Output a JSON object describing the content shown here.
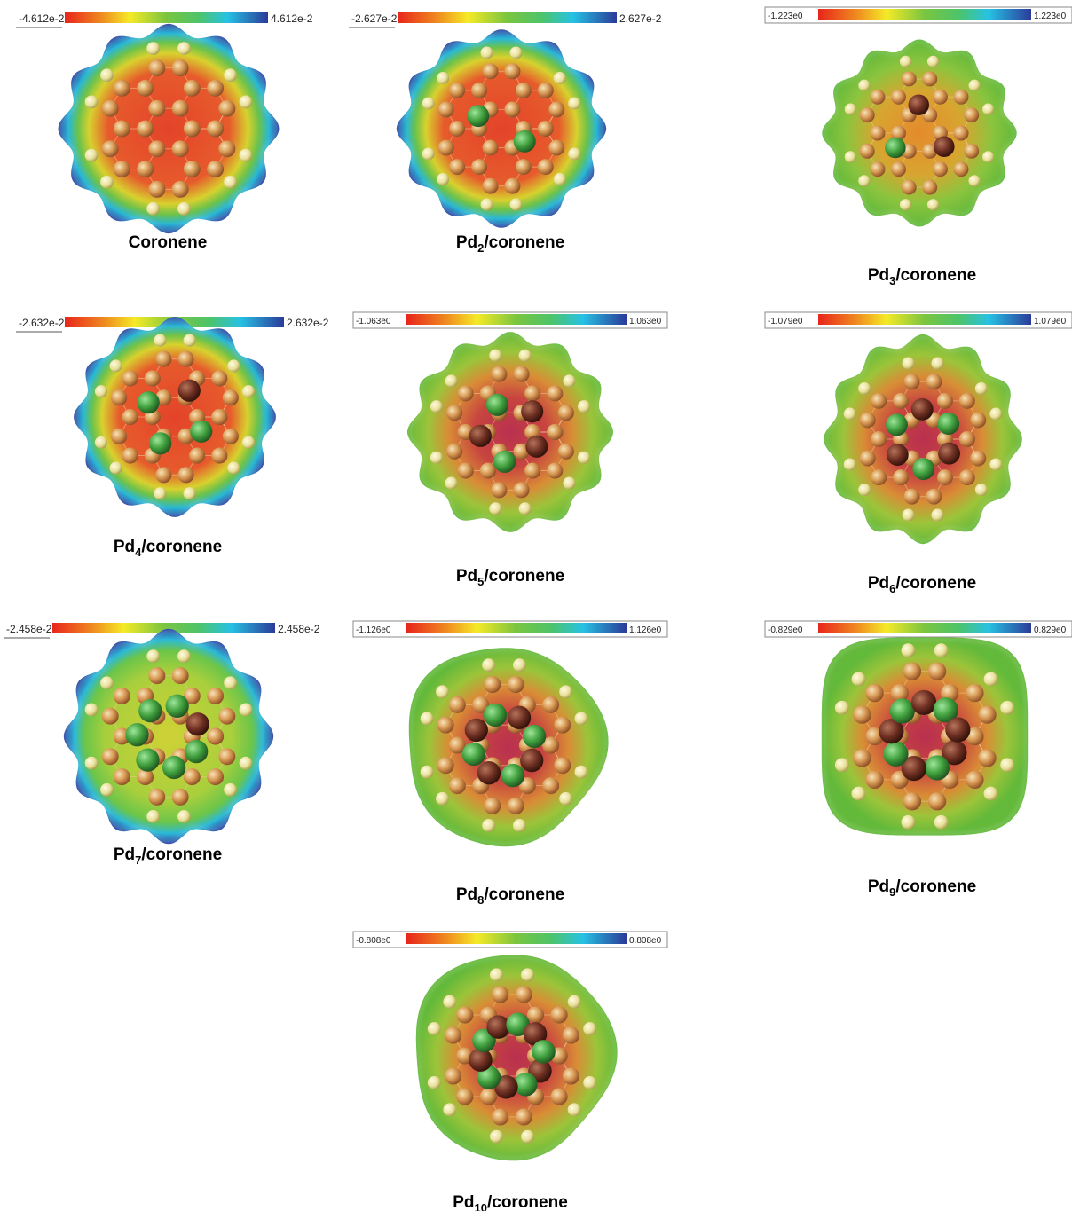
{
  "panels": [
    {
      "id": "coronene",
      "label": "Coronene",
      "sub": "",
      "scale_min": "-4.612e-2",
      "scale_max": "4.612e-2",
      "pd": 0,
      "boxed": false,
      "core": "red",
      "edge": "blue",
      "shape": "scallop"
    },
    {
      "id": "pd2",
      "label": "Pd",
      "sub": "2",
      "label_suffix": "/coronene",
      "scale_min": "-2.627e-2",
      "scale_max": "2.627e-2",
      "pd": 2,
      "boxed": false,
      "core": "red",
      "edge": "blue",
      "shape": "scallop"
    },
    {
      "id": "pd3",
      "label": "Pd",
      "sub": "3",
      "label_suffix": "/coronene",
      "scale_min": "-1.223e0",
      "scale_max": "1.223e0",
      "pd": 3,
      "boxed": true,
      "core": "orange",
      "edge": "green",
      "shape": "scallop"
    },
    {
      "id": "pd4",
      "label": "Pd",
      "sub": "4",
      "label_suffix": "/coronene",
      "scale_min": "-2.632e-2",
      "scale_max": "2.632e-2",
      "pd": 4,
      "boxed": false,
      "core": "red",
      "edge": "blue",
      "shape": "scallop"
    },
    {
      "id": "pd5",
      "label": "Pd",
      "sub": "5",
      "label_suffix": "/coronene",
      "scale_min": "-1.063e0",
      "scale_max": "1.063e0",
      "pd": 5,
      "boxed": true,
      "core": "magenta",
      "edge": "green",
      "shape": "scallop"
    },
    {
      "id": "pd6",
      "label": "Pd",
      "sub": "6",
      "label_suffix": "/coronene",
      "scale_min": "-1.079e0",
      "scale_max": "1.079e0",
      "pd": 6,
      "boxed": true,
      "core": "magenta",
      "edge": "green",
      "shape": "scallop"
    },
    {
      "id": "pd7",
      "label": "Pd",
      "sub": "7",
      "label_suffix": "/coronene",
      "scale_min": "-2.458e-2",
      "scale_max": "2.458e-2",
      "pd": 7,
      "boxed": false,
      "core": "yellow",
      "edge": "blue",
      "shape": "scallop"
    },
    {
      "id": "pd8",
      "label": "Pd",
      "sub": "8",
      "label_suffix": "/coronene",
      "scale_min": "-1.126e0",
      "scale_max": "1.126e0",
      "pd": 8,
      "boxed": true,
      "core": "magenta",
      "edge": "green",
      "shape": "blob"
    },
    {
      "id": "pd9",
      "label": "Pd",
      "sub": "9",
      "label_suffix": "/coronene",
      "scale_min": "-0.829e0",
      "scale_max": "0.829e0",
      "pd": 9,
      "boxed": true,
      "core": "magenta",
      "edge": "green",
      "shape": "square"
    },
    {
      "id": "pd10",
      "label": "Pd",
      "sub": "10",
      "label_suffix": "/coronene",
      "scale_min": "-0.808e0",
      "scale_max": "0.808e0",
      "pd": 10,
      "boxed": true,
      "core": "magenta",
      "edge": "green",
      "shape": "blob"
    }
  ],
  "colors": {
    "red": "#e03020",
    "orange": "#e98a2a",
    "yellow": "#f2ea2c",
    "green": "#6cc23f",
    "cyan": "#2ec8e6",
    "blue": "#2c3d9a",
    "magenta": "#c23a55",
    "pd_atom": "#3e8f3a",
    "pd_atom_dark": "#6a2b1c"
  }
}
